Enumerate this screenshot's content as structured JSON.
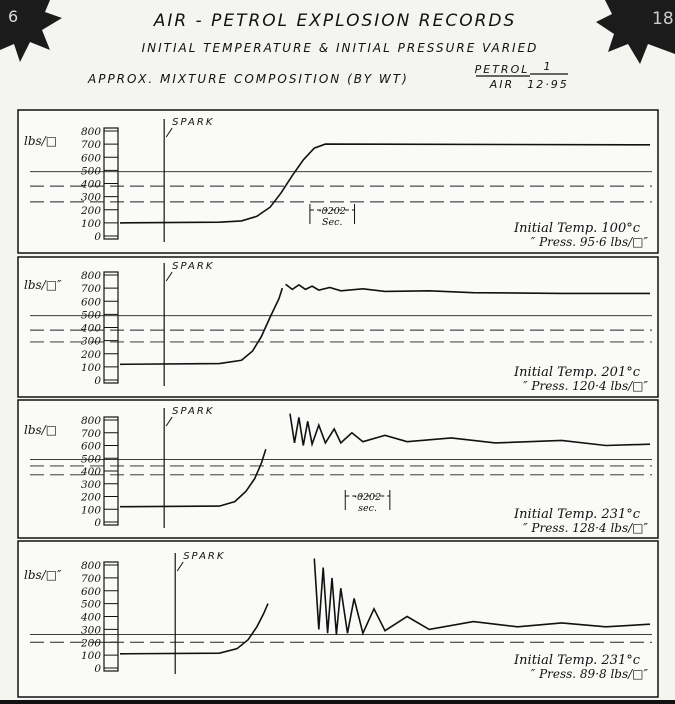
{
  "header": {
    "title": "AIR - PETROL   EXPLOSION   RECORDS",
    "subtitle": "INITIAL TEMPERATURE & INITIAL PRESSURE VARIED",
    "composition": "APPROX. MIXTURE COMPOSITION (BY WT)",
    "ratio_top_label": "PETROL",
    "ratio_bottom_label": "AIR",
    "ratio_top_value": "1",
    "ratio_bottom_value": "12·95",
    "corner_left": "6",
    "corner_right": "18"
  },
  "chart_data": [
    {
      "type": "line",
      "ylabel": "lbs/□",
      "ylim": [
        0,
        800
      ],
      "yticks": [
        0,
        100,
        200,
        300,
        400,
        500,
        600,
        700,
        800
      ],
      "xlim": [
        0,
        0.24
      ],
      "spark_label": "SPARK",
      "spark_x": 0.02,
      "color": "#111",
      "x": [
        0,
        0.045,
        0.055,
        0.062,
        0.068,
        0.073,
        0.078,
        0.083,
        0.088,
        0.093,
        0.24
      ],
      "values": [
        100,
        105,
        115,
        150,
        220,
        330,
        460,
        580,
        670,
        700,
        695
      ],
      "hlines": [
        {
          "value": 490,
          "style": "solid"
        },
        {
          "value": 380,
          "style": "dashed"
        },
        {
          "value": 260,
          "style": "dashed"
        }
      ],
      "interval_label": [
        "·0202",
        "Sec."
      ],
      "interval_x": [
        0.086,
        0.1062
      ],
      "temp_label": "Initial Temp. 100°c",
      "press_label": "″   Press. 95·6 lbs/□″"
    },
    {
      "type": "line",
      "ylabel": "lbs/□″",
      "ylim": [
        0,
        800
      ],
      "yticks": [
        0,
        100,
        200,
        300,
        400,
        500,
        600,
        700,
        800
      ],
      "xlim": [
        0,
        0.24
      ],
      "spark_label": "SPARK",
      "spark_x": 0.02,
      "color": "#111",
      "x": [
        0,
        0.045,
        0.055,
        0.06,
        0.064,
        0.068,
        0.072,
        0.0735,
        null,
        0.075,
        0.078,
        0.081,
        0.084,
        0.087,
        0.09,
        0.095,
        0.1,
        0.11,
        0.12,
        0.14,
        0.16,
        0.2,
        0.24
      ],
      "values": [
        120,
        125,
        150,
        220,
        330,
        480,
        620,
        700,
        null,
        730,
        690,
        725,
        690,
        715,
        685,
        705,
        680,
        695,
        675,
        680,
        665,
        660,
        660
      ],
      "hlines": [
        {
          "value": 490,
          "style": "solid"
        },
        {
          "value": 380,
          "style": "dashed"
        },
        {
          "value": 290,
          "style": "dashed"
        }
      ],
      "temp_label": "Initial Temp. 201°c",
      "press_label": "″   Press. 120·4 lbs/□″"
    },
    {
      "type": "line",
      "ylabel": "lbs/□",
      "ylim": [
        0,
        800
      ],
      "yticks": [
        0,
        100,
        200,
        300,
        400,
        500,
        600,
        700,
        800
      ],
      "xlim": [
        0,
        0.24
      ],
      "spark_label": "SPARK",
      "spark_x": 0.02,
      "color": "#111",
      "x": [
        0,
        0.045,
        0.052,
        0.057,
        0.061,
        0.064,
        0.066,
        null,
        0.077,
        0.079,
        0.081,
        0.083,
        0.085,
        0.087,
        0.09,
        0.093,
        0.097,
        0.1,
        0.105,
        0.11,
        0.12,
        0.13,
        0.15,
        0.17,
        0.2,
        0.22,
        0.24
      ],
      "values": [
        120,
        125,
        160,
        240,
        340,
        460,
        570,
        null,
        850,
        620,
        820,
        600,
        790,
        610,
        760,
        620,
        730,
        620,
        700,
        630,
        680,
        630,
        660,
        620,
        640,
        600,
        610
      ],
      "hlines": [
        {
          "value": 490,
          "style": "solid"
        },
        {
          "value": 440,
          "style": "dashed"
        },
        {
          "value": 370,
          "style": "dashed"
        }
      ],
      "interval_label": [
        "·0202",
        "sec."
      ],
      "interval_x": [
        0.102,
        0.1222
      ],
      "temp_label": "Initial Temp. 231°c",
      "press_label": "″   Press. 128·4 lbs/□″"
    },
    {
      "type": "line",
      "ylabel": "lbs/□″",
      "ylim": [
        0,
        800
      ],
      "yticks": [
        0,
        100,
        200,
        300,
        400,
        500,
        600,
        700,
        800
      ],
      "xlim": [
        0,
        0.24
      ],
      "spark_label": "SPARK",
      "spark_x": 0.025,
      "color": "#111",
      "x": [
        0,
        0.045,
        0.053,
        0.058,
        0.062,
        0.065,
        0.067,
        null,
        0.088,
        0.09,
        0.092,
        0.094,
        0.096,
        0.098,
        0.1,
        0.103,
        0.106,
        0.11,
        0.115,
        0.12,
        0.13,
        0.14,
        0.16,
        0.18,
        0.2,
        0.22,
        0.24
      ],
      "values": [
        110,
        115,
        150,
        220,
        320,
        420,
        500,
        null,
        850,
        300,
        780,
        270,
        700,
        260,
        620,
        270,
        540,
        270,
        460,
        290,
        400,
        300,
        360,
        320,
        350,
        320,
        340
      ],
      "hlines": [
        {
          "value": 260,
          "style": "solid"
        },
        {
          "value": 200,
          "style": "dashed"
        }
      ],
      "temp_label": "Initial Temp. 231°c",
      "press_label": "″   Press. 89·8 lbs/□″"
    }
  ]
}
